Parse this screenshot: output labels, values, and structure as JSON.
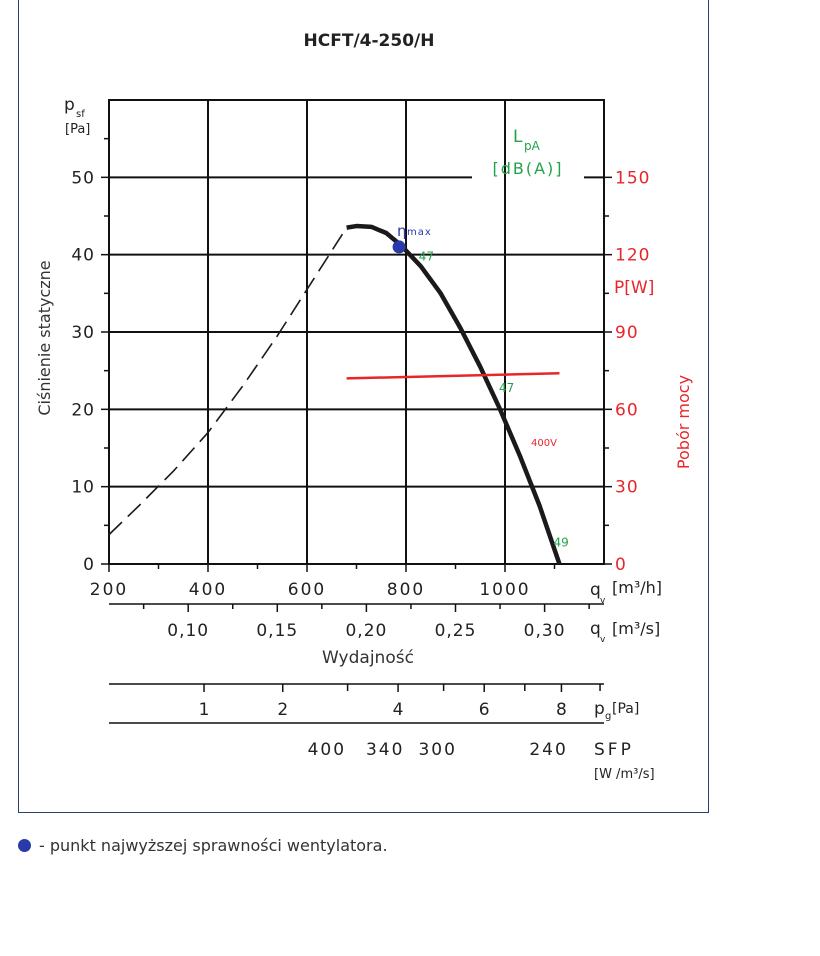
{
  "colors": {
    "frame": "#2a3f6f",
    "curve": "#1a1a1a",
    "power": "#e8262a",
    "noise": "#22a34a",
    "eta": "#2a3aa8"
  },
  "chart_data": {
    "type": "line",
    "title": "HCFT/4-250/H",
    "ylabel": "Ciśnienie statyczne",
    "y_symbol": "p",
    "y_symbol_sub": "sf",
    "y_unit": "[Pa]",
    "xlabel": "Wydajność",
    "xlim": [
      200,
      1200
    ],
    "ylim": [
      0,
      60
    ],
    "x_ticks": [
      "200",
      "400",
      "600",
      "800",
      "1000"
    ],
    "y_ticks": [
      "0",
      "10",
      "20",
      "30",
      "40",
      "50"
    ],
    "x_unit_m3h": {
      "symbol": "q",
      "sub": "v",
      "unit": "[m³/h]"
    },
    "x_unit_m3s": {
      "symbol": "q",
      "sub": "v",
      "unit": "[m³/s]"
    },
    "secondary_x_ticks": [
      "0,10",
      "0,15",
      "0,20",
      "0,25",
      "0,30"
    ],
    "secondary_x_values": [
      360,
      540,
      720,
      900,
      1080
    ],
    "power_axis": {
      "label": "Pobór mocy",
      "unit": "P[W]",
      "ticks": [
        "0",
        "30",
        "60",
        "90",
        "120",
        "150"
      ],
      "range": [
        0,
        180
      ]
    },
    "noise_label": {
      "symbol": "L",
      "sub": "pA",
      "unit": "[dB(A)]"
    },
    "eta_label": {
      "symbol": "η",
      "sub": "max"
    },
    "series": [
      {
        "style": "dashed",
        "x": [
          200,
          260,
          330,
          400,
          470,
          540,
          610,
          680
        ],
        "y": [
          3.8,
          7.5,
          12,
          17,
          23,
          29.5,
          36.5,
          43.5
        ]
      },
      {
        "style": "solid",
        "x": [
          680,
          700,
          730,
          760,
          790,
          830,
          870,
          910,
          950,
          990,
          1030,
          1070,
          1110
        ],
        "y": [
          43.5,
          43.7,
          43.6,
          42.8,
          41.2,
          38.5,
          35,
          30.5,
          25.5,
          20,
          14,
          7.5,
          0
        ]
      },
      {
        "name": "400V",
        "style": "power",
        "x": [
          680,
          1110
        ],
        "y_power": [
          72,
          74
        ]
      }
    ],
    "eta_point": {
      "x": 786,
      "y": 41
    },
    "noise_points": [
      {
        "label": "47",
        "x": 838,
        "y": 39
      },
      {
        "label": "47",
        "x": 1000,
        "y": 22
      },
      {
        "label": "49",
        "x": 1110,
        "y": 2
      }
    ],
    "power_series_label": "400V",
    "pg_axis": {
      "label_symbol": "p",
      "label_sub": "g",
      "label_unit": "[Pa]",
      "ticks": [
        "1",
        "2",
        "4",
        "6",
        "8"
      ],
      "x_positions": [
        392,
        551,
        784,
        958,
        1114
      ],
      "minor_x": [
        682,
        876,
        1040,
        1192
      ]
    },
    "sfp_axis": {
      "label": "SFP",
      "unit": "[W /m³/s]",
      "ticks": [
        "400",
        "340",
        "300",
        "240"
      ],
      "x_positions": [
        640,
        758,
        864,
        1088
      ]
    }
  },
  "footer": {
    "note": "- punkt najwyższej sprawności wentylatora."
  }
}
